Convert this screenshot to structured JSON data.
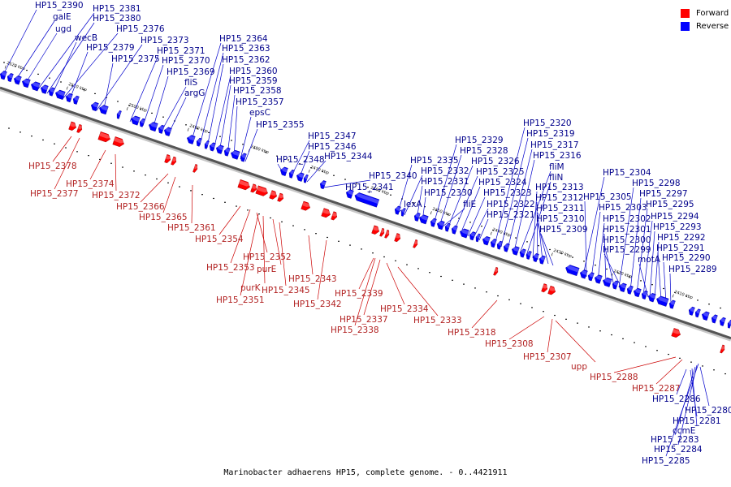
{
  "legend": {
    "forward": {
      "label": "Forward",
      "color": "#ff0000"
    },
    "reverse": {
      "label": "Reverse",
      "color": "#0000ff"
    }
  },
  "caption": "Marinobacter adhaerens HP15, complete genome. - 0..4421911",
  "scale_ticks": [
    "2520 kbp",
    "2510 kbp",
    "2500 kbp",
    "2490 kbp",
    "2480 kbp",
    "2470 kbp",
    "2460 kbp",
    "2450 kbp",
    "2440 kbp",
    "2430 kbp",
    "2420 kbp",
    "2410 kbp"
  ],
  "reverse_labels": [
    "HP15_2390",
    "galE",
    "ugd",
    "HP15_2381",
    "HP15_2380",
    "wecB",
    "HP15_2376",
    "HP15_2379",
    "HP15_2373",
    "HP15_2375",
    "HP15_2371",
    "HP15_2370",
    "HP15_2369",
    "fliS",
    "argG",
    "HP15_2364",
    "HP15_2363",
    "HP15_2362",
    "HP15_2360",
    "HP15_2359",
    "HP15_2358",
    "HP15_2357",
    "epsC",
    "HP15_2355",
    "HP15_2348",
    "HP15_2347",
    "HP15_2346",
    "HP15_2344",
    "HP15_2340",
    "HP15_2341",
    "HP15_2335",
    "HP15_2332",
    "HP15_2331",
    "HP15_2330",
    "lexA",
    "HP15_2329",
    "HP15_2328",
    "HP15_2326",
    "HP15_2325",
    "HP15_2324",
    "HP15_2323",
    "fliE",
    "HP15_2322",
    "HP15_2321",
    "HP15_2320",
    "HP15_2319",
    "HP15_2317",
    "HP15_2316",
    "fliM",
    "fliN",
    "HP15_2313",
    "HP15_2312",
    "HP15_2311",
    "HP15_2310",
    "HP15_2309",
    "HP15_2304",
    "HP15_2298",
    "HP15_2305",
    "HP15_2297",
    "HP15_2303",
    "HP15_2295",
    "HP15_2302",
    "HP15_2294",
    "HP15_2301",
    "HP15_2293",
    "HP15_2300",
    "HP15_2292",
    "HP15_2299",
    "HP15_2291",
    "motA",
    "HP15_2290",
    "HP15_2289",
    "HP15_2286",
    "HP15_2280",
    "HP15_2281",
    "ccmE",
    "HP15_2283",
    "HP15_2284",
    "HP15_2285"
  ],
  "forward_labels": [
    "HP15_2378",
    "HP15_2374",
    "HP15_2377",
    "HP15_2372",
    "HP15_2366",
    "HP15_2365",
    "HP15_2361",
    "HP15_2354",
    "HP15_2352",
    "HP15_2353",
    "purE",
    "purK",
    "HP15_2345",
    "HP15_2351",
    "HP15_2343",
    "HP15_2339",
    "HP15_2342",
    "HP15_2337",
    "HP15_2338",
    "HP15_2334",
    "HP15_2333",
    "HP15_2318",
    "HP15_2308",
    "HP15_2307",
    "upp",
    "HP15_2288",
    "HP15_2287"
  ]
}
